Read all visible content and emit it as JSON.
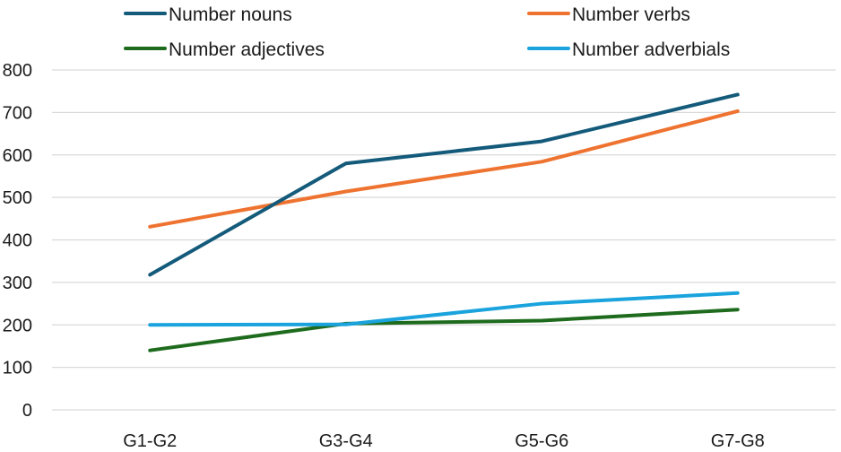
{
  "chart_data": {
    "type": "line",
    "title": "",
    "xlabel": "",
    "ylabel": "",
    "categories": [
      "G1-G2",
      "G3-G4",
      "G5-G6",
      "G7-G8"
    ],
    "ylim": [
      0,
      800
    ],
    "yticks": [
      0,
      100,
      200,
      300,
      400,
      500,
      600,
      700,
      800
    ],
    "grid": "horizontal",
    "legend_position": "top",
    "series": [
      {
        "name": "Number nouns",
        "color": "#145a7a",
        "values": [
          318,
          580,
          632,
          742
        ]
      },
      {
        "name": "Number verbs",
        "color": "#ef7330",
        "values": [
          431,
          514,
          584,
          703
        ]
      },
      {
        "name": "Number adjectives",
        "color": "#1e6b1e",
        "values": [
          140,
          203,
          210,
          236
        ]
      },
      {
        "name": "Number adverbials",
        "color": "#1aa3dd",
        "values": [
          200,
          201,
          250,
          275
        ]
      }
    ]
  }
}
